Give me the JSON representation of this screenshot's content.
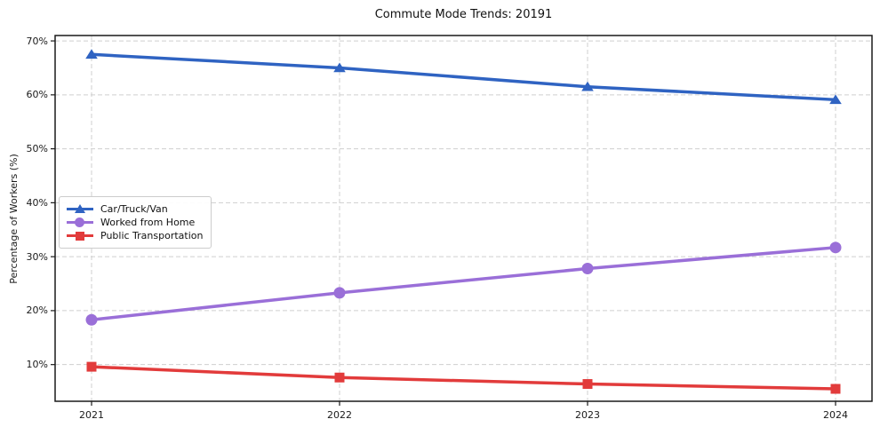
{
  "figure": {
    "background": "#ffffff",
    "axis_color": "#1a1a1a",
    "grid_color": "#cfcfcf",
    "tick_suffix": "%"
  },
  "chart_data": {
    "type": "line",
    "title": "Commute Mode Trends: 20191",
    "xlabel": "",
    "ylabel": "Percentage of Workers (%)",
    "categories": [
      "2021",
      "2022",
      "2023",
      "2024"
    ],
    "y_ticks": [
      10,
      20,
      30,
      40,
      50,
      60,
      70
    ],
    "y_tick_labels": [
      "10%",
      "20%",
      "30%",
      "40%",
      "50%",
      "60%",
      "70%"
    ],
    "ylim": [
      3.2,
      71.0
    ],
    "grid": true,
    "grid_style": "dashed",
    "legend_position": "center-left",
    "series": [
      {
        "name": "Car/Truck/Van",
        "color": "#2f63c2",
        "marker": "triangle",
        "values": [
          67.5,
          65.0,
          61.5,
          59.1
        ]
      },
      {
        "name": "Worked from Home",
        "color": "#9a6fd8",
        "marker": "circle",
        "values": [
          18.3,
          23.3,
          27.8,
          31.7
        ]
      },
      {
        "name": "Public Transportation",
        "color": "#e23b3b",
        "marker": "square",
        "values": [
          9.6,
          7.6,
          6.4,
          5.5
        ]
      }
    ]
  }
}
